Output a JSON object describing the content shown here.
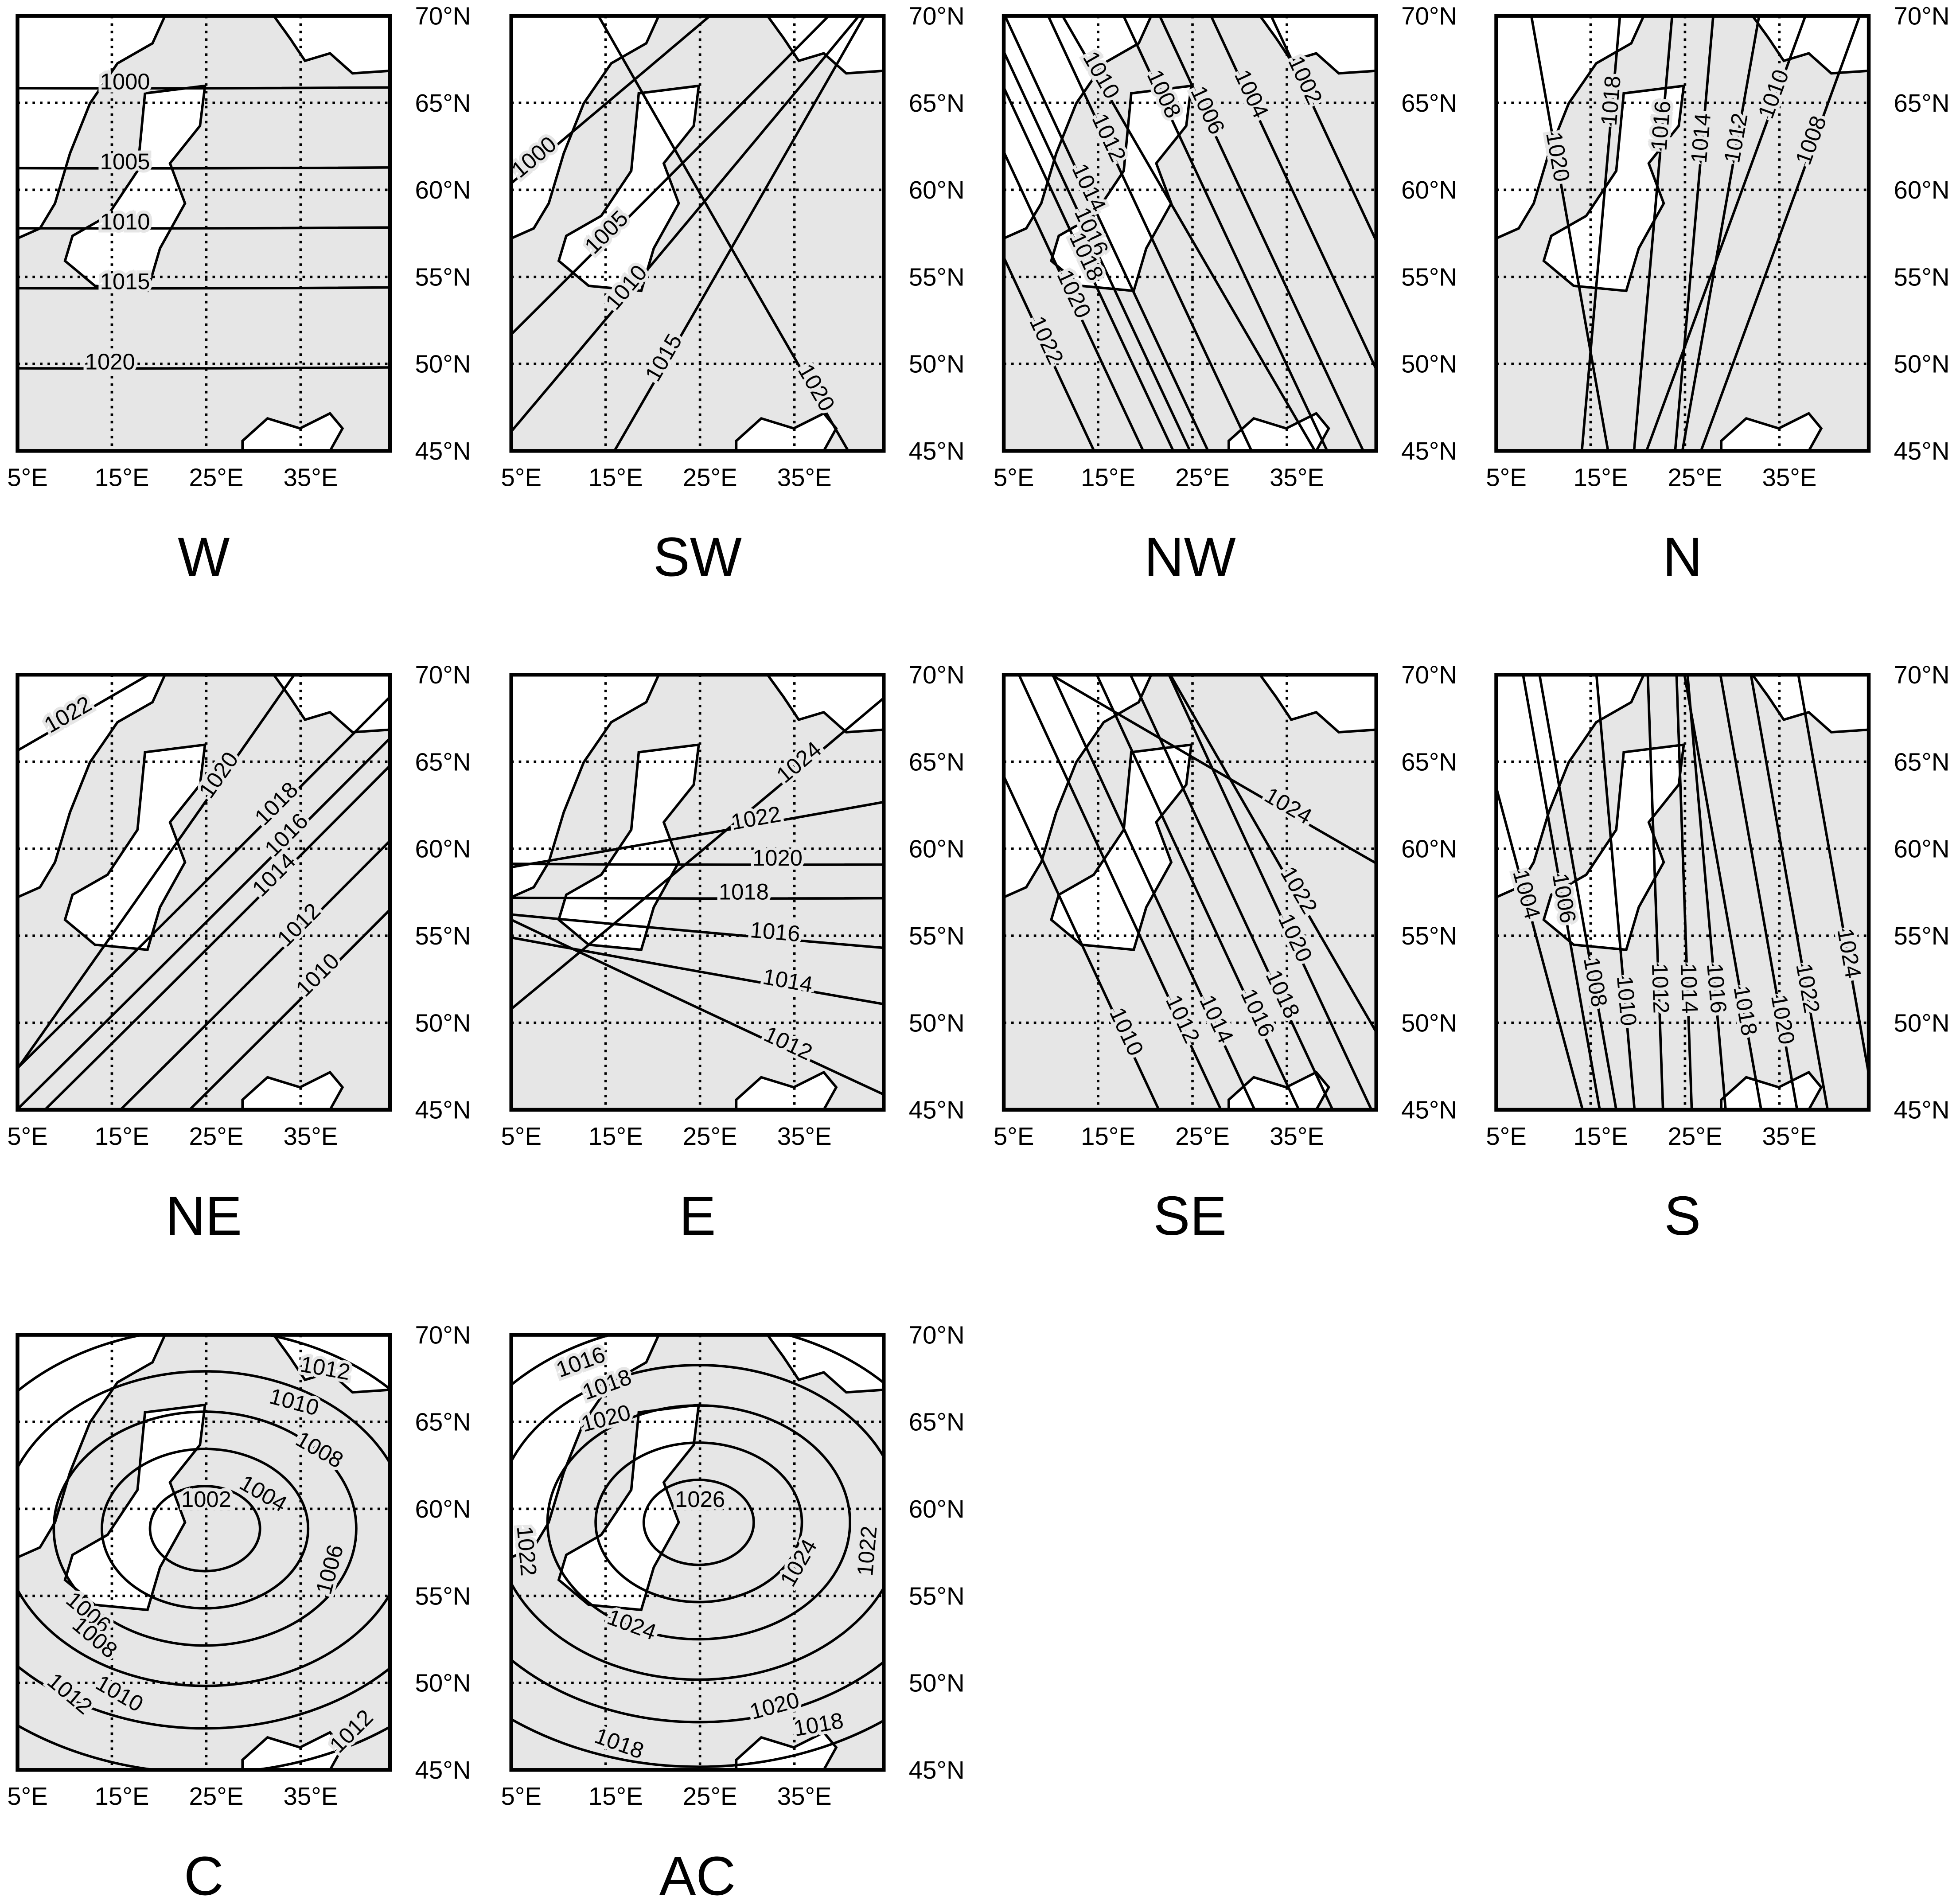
{
  "lon_ticks": [
    "5°E",
    "15°E",
    "25°E",
    "35°E"
  ],
  "lat_ticks": [
    "70°N",
    "65°N",
    "60°N",
    "55°N",
    "50°N",
    "45°N"
  ],
  "panels": [
    {
      "title": "W",
      "contours": [
        1000,
        1005,
        1010,
        1015,
        1020
      ]
    },
    {
      "title": "SW",
      "contours": [
        1000,
        1005,
        1010,
        1015,
        1020
      ]
    },
    {
      "title": "NW",
      "contours": [
        1010,
        1008,
        1006,
        1004,
        1002,
        1012,
        1014,
        1016,
        1018,
        1020,
        1022
      ]
    },
    {
      "title": "N",
      "contours": [
        1020,
        1018,
        1016,
        1014,
        1012,
        1010,
        1008
      ]
    },
    {
      "title": "NE",
      "contours": [
        1022,
        1020,
        1018,
        1016,
        1014,
        1012,
        1010
      ]
    },
    {
      "title": "E",
      "contours": [
        1024,
        1022,
        1020,
        1018,
        1016,
        1014,
        1012
      ]
    },
    {
      "title": "SE",
      "contours": [
        1024,
        1022,
        1020,
        1018,
        1016,
        1014,
        1012,
        1010
      ]
    },
    {
      "title": "S",
      "contours": [
        1004,
        1006,
        1008,
        1010,
        1012,
        1014,
        1016,
        1018,
        1020,
        1022,
        1024
      ]
    },
    {
      "title": "C",
      "contours": [
        1012,
        1010,
        1008,
        1004,
        1002,
        1006,
        1006,
        1008,
        1010,
        1012,
        1012
      ]
    },
    {
      "title": "AC",
      "contours": [
        1016,
        1018,
        1020,
        1026,
        1024,
        1024,
        1022,
        1022,
        1020,
        1018,
        1018
      ]
    }
  ]
}
